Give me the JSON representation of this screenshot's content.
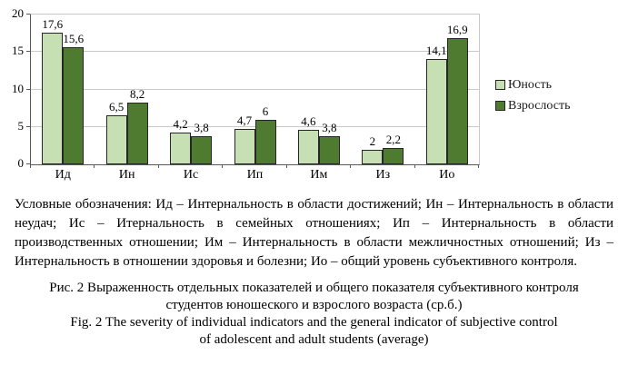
{
  "chart_data": {
    "type": "bar",
    "title": "",
    "xlabel": "",
    "ylabel": "",
    "categories": [
      "Ид",
      "Ин",
      "Ис",
      "Ип",
      "Им",
      "Из",
      "Ио"
    ],
    "series": [
      {
        "name": "Юность",
        "color": "#c6e0b4",
        "values": [
          17.6,
          6.5,
          4.2,
          4.7,
          4.6,
          2,
          14.1
        ],
        "labels": [
          "17,6",
          "6,5",
          "4,2",
          "4,7",
          "4,6",
          "2",
          "14,1"
        ]
      },
      {
        "name": "Взрослость",
        "color": "#4e7b2f",
        "values": [
          15.6,
          8.2,
          3.8,
          6,
          3.8,
          2.2,
          16.9
        ],
        "labels": [
          "15,6",
          "8,2",
          "3,8",
          "6",
          "3,8",
          "2,2",
          "16,9"
        ]
      }
    ],
    "ylim": [
      0,
      20
    ],
    "yticks": [
      0,
      5,
      10,
      15,
      20
    ],
    "grid": true,
    "legend_position": "right"
  },
  "colors": {
    "series_light": "#c6e0b4",
    "series_dark": "#4e7b2f",
    "gridline": "#c9c9c9",
    "axis": "#595959"
  },
  "notes": {
    "text": "Условные обозначения: Ид – Интернальность в области достижений; Ин – Интернальность в области неудач; Ис – Итернальность в семейных отношениях; Ип – Интернальность в области производственных отношении; Им – Интернальность в области межличностных отношений; Из – Интернальность в отношении здоровья и болезни; Ио – общий уровень субъективного контроля."
  },
  "caption": {
    "ru1": "Рис. 2 Выраженность отдельных показателей и общего показателя субъективного контроля",
    "ru2": "студентов юношеского и взрослого возраста (ср.б.)",
    "en1": "Fig. 2 The severity of individual indicators and the general indicator of subjective control",
    "en2": "of adolescent and adult students (average)"
  }
}
